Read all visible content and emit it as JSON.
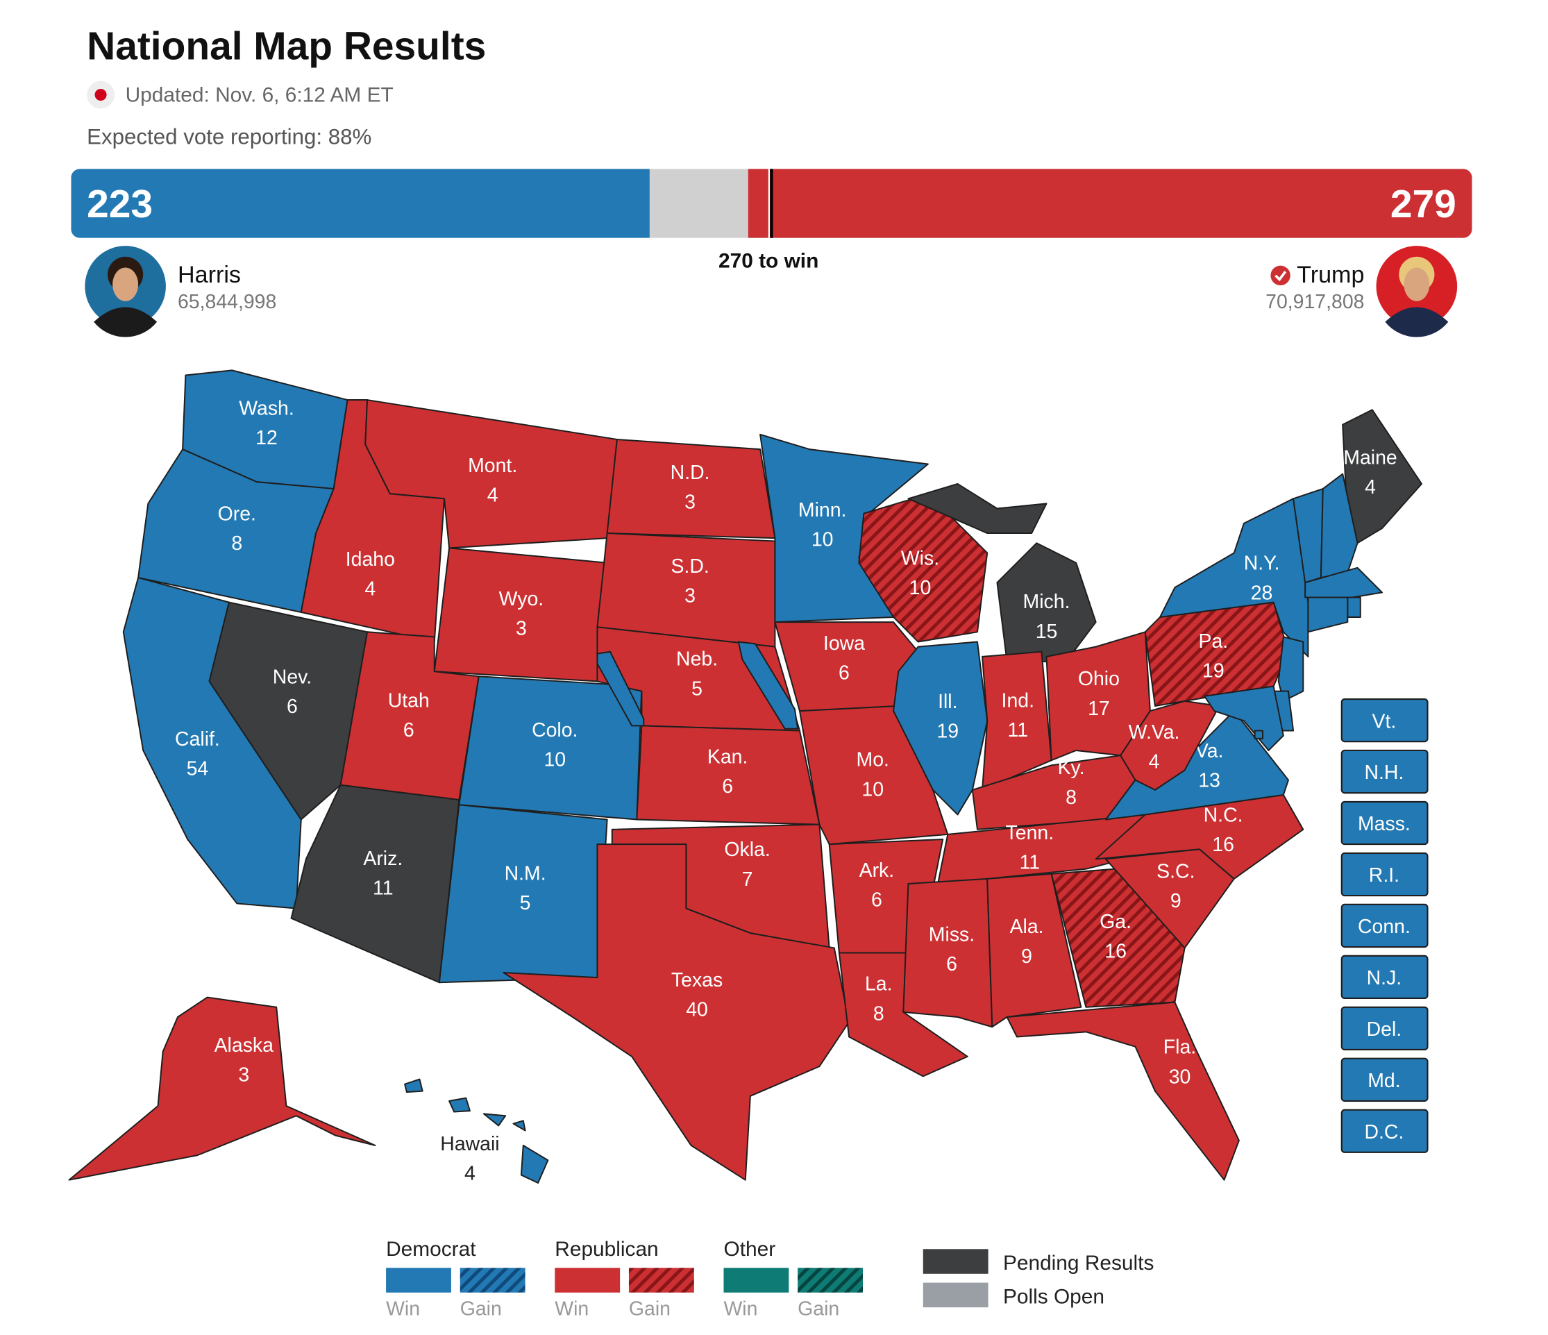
{
  "header": {
    "title": "National Map Results",
    "updated": "Updated: Nov. 6, 6:12 AM ET",
    "reporting": "Expected vote reporting: 88%"
  },
  "tally": {
    "harris": {
      "name": "Harris",
      "electoral_votes": 223,
      "popular_vote": "65,844,998",
      "color": "#2379b3"
    },
    "trump": {
      "name": "Trump",
      "electoral_votes": 279,
      "popular_vote": "70,917,808",
      "color": "#cc3033",
      "winner": true
    },
    "threshold": {
      "value": 270,
      "label": "270 to win"
    },
    "undecided_color": "#d0d0d0"
  },
  "legend": {
    "groups": [
      {
        "name": "Democrat",
        "win_label": "Win",
        "gain_label": "Gain",
        "color": "#2379b3",
        "stripe_color": "#0f4a7c"
      },
      {
        "name": "Republican",
        "win_label": "Win",
        "gain_label": "Gain",
        "color": "#cc3033",
        "stripe_color": "#8a1518"
      },
      {
        "name": "Other",
        "win_label": "Win",
        "gain_label": "Gain",
        "color": "#0e7b74",
        "stripe_color": "#06443f"
      }
    ],
    "others": [
      {
        "name": "Pending Results",
        "color": "#3d3e40"
      },
      {
        "name": "Polls Open",
        "color": "#9a9ea5"
      }
    ]
  },
  "states": [
    {
      "label": "Wash.",
      "votes": 12,
      "party": "Democrat",
      "result": "Win"
    },
    {
      "label": "Ore.",
      "votes": 8,
      "party": "Democrat",
      "result": "Win"
    },
    {
      "label": "Calif.",
      "votes": 54,
      "party": "Democrat",
      "result": "Win"
    },
    {
      "label": "Idaho",
      "votes": 4,
      "party": "Republican",
      "result": "Win"
    },
    {
      "label": "Nev.",
      "votes": 6,
      "party": "Pending Results"
    },
    {
      "label": "Mont.",
      "votes": 4,
      "party": "Republican",
      "result": "Win"
    },
    {
      "label": "Wyo.",
      "votes": 3,
      "party": "Republican",
      "result": "Win"
    },
    {
      "label": "Utah",
      "votes": 6,
      "party": "Republican",
      "result": "Win"
    },
    {
      "label": "Ariz.",
      "votes": 11,
      "party": "Pending Results"
    },
    {
      "label": "Colo.",
      "votes": 10,
      "party": "Democrat",
      "result": "Win"
    },
    {
      "label": "N.M.",
      "votes": 5,
      "party": "Democrat",
      "result": "Win"
    },
    {
      "label": "N.D.",
      "votes": 3,
      "party": "Republican",
      "result": "Win"
    },
    {
      "label": "S.D.",
      "votes": 3,
      "party": "Republican",
      "result": "Win"
    },
    {
      "label": "Neb.",
      "votes": 5,
      "party": "Republican",
      "result": "Win",
      "split_party": "Democrat"
    },
    {
      "label": "Kan.",
      "votes": 6,
      "party": "Republican",
      "result": "Win"
    },
    {
      "label": "Okla.",
      "votes": 7,
      "party": "Republican",
      "result": "Win"
    },
    {
      "label": "Texas",
      "votes": 40,
      "party": "Republican",
      "result": "Win"
    },
    {
      "label": "Minn.",
      "votes": 10,
      "party": "Democrat",
      "result": "Win"
    },
    {
      "label": "Iowa",
      "votes": 6,
      "party": "Republican",
      "result": "Win"
    },
    {
      "label": "Mo.",
      "votes": 10,
      "party": "Republican",
      "result": "Win"
    },
    {
      "label": "Ark.",
      "votes": 6,
      "party": "Republican",
      "result": "Win"
    },
    {
      "label": "La.",
      "votes": 8,
      "party": "Republican",
      "result": "Win"
    },
    {
      "label": "Wis.",
      "votes": 10,
      "party": "Republican",
      "result": "Gain"
    },
    {
      "label": "Ill.",
      "votes": 19,
      "party": "Democrat",
      "result": "Win"
    },
    {
      "label": "Mich.",
      "votes": 15,
      "party": "Pending Results"
    },
    {
      "label": "Ind.",
      "votes": 11,
      "party": "Republican",
      "result": "Win"
    },
    {
      "label": "Ohio",
      "votes": 17,
      "party": "Republican",
      "result": "Win"
    },
    {
      "label": "Ky.",
      "votes": 8,
      "party": "Republican",
      "result": "Win"
    },
    {
      "label": "Tenn.",
      "votes": 11,
      "party": "Republican",
      "result": "Win"
    },
    {
      "label": "Miss.",
      "votes": 6,
      "party": "Republican",
      "result": "Win"
    },
    {
      "label": "Ala.",
      "votes": 9,
      "party": "Republican",
      "result": "Win"
    },
    {
      "label": "Ga.",
      "votes": 16,
      "party": "Republican",
      "result": "Gain"
    },
    {
      "label": "Fla.",
      "votes": 30,
      "party": "Republican",
      "result": "Win"
    },
    {
      "label": "S.C.",
      "votes": 9,
      "party": "Republican",
      "result": "Win"
    },
    {
      "label": "N.C.",
      "votes": 16,
      "party": "Republican",
      "result": "Win"
    },
    {
      "label": "Va.",
      "votes": 13,
      "party": "Democrat",
      "result": "Win"
    },
    {
      "label": "W.Va.",
      "votes": 4,
      "party": "Republican",
      "result": "Win"
    },
    {
      "label": "Pa.",
      "votes": 19,
      "party": "Republican",
      "result": "Gain"
    },
    {
      "label": "N.Y.",
      "votes": 28,
      "party": "Democrat",
      "result": "Win"
    },
    {
      "label": "Maine",
      "votes": 4,
      "party": "Pending Results"
    },
    {
      "label": "Alaska",
      "votes": 3,
      "party": "Republican",
      "result": "Win"
    },
    {
      "label": "Hawaii",
      "votes": 4,
      "party": "Democrat",
      "result": "Win"
    },
    {
      "label": "Vt.",
      "party": "Democrat",
      "result": "Win"
    },
    {
      "label": "N.H.",
      "party": "Democrat",
      "result": "Win"
    },
    {
      "label": "Mass.",
      "party": "Democrat",
      "result": "Win"
    },
    {
      "label": "R.I.",
      "party": "Democrat",
      "result": "Win"
    },
    {
      "label": "Conn.",
      "party": "Democrat",
      "result": "Win"
    },
    {
      "label": "N.J.",
      "party": "Democrat",
      "result": "Win"
    },
    {
      "label": "Del.",
      "party": "Democrat",
      "result": "Win"
    },
    {
      "label": "Md.",
      "party": "Democrat",
      "result": "Win"
    },
    {
      "label": "D.C.",
      "party": "Democrat",
      "result": "Win"
    }
  ]
}
